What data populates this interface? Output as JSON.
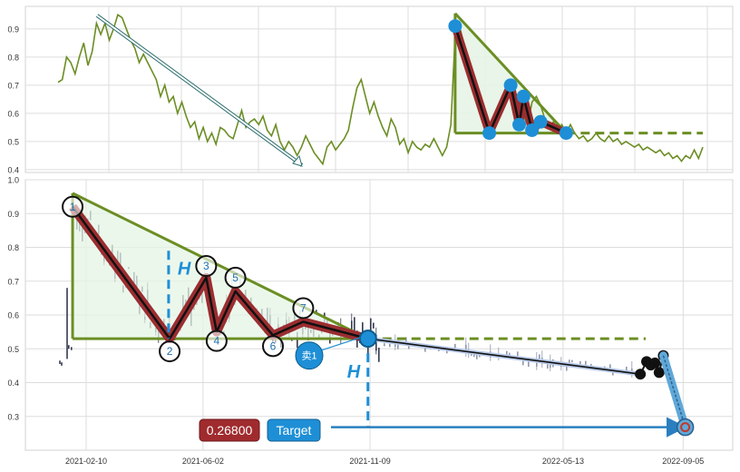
{
  "chart_data": [
    {
      "type": "line",
      "title": "",
      "xlabel": "",
      "ylabel": "",
      "ylim": [
        0.39,
        0.98
      ],
      "grid": true,
      "y_ticks": [
        "0.4",
        "0.5",
        "0.6",
        "0.7",
        "0.8",
        "0.9"
      ],
      "series": [
        {
          "values": [
            0.71,
            0.72,
            0.8,
            0.78,
            0.74,
            0.8,
            0.85,
            0.77,
            0.82,
            0.92,
            0.88,
            0.92,
            0.86,
            0.9,
            0.95,
            0.94,
            0.9,
            0.86,
            0.83,
            0.78,
            0.81,
            0.78,
            0.75,
            0.72,
            0.66,
            0.7,
            0.64,
            0.66,
            0.6,
            0.64,
            0.59,
            0.55,
            0.57,
            0.51,
            0.55,
            0.5,
            0.53,
            0.49,
            0.55,
            0.54,
            0.52,
            0.51,
            0.56,
            0.61,
            0.55,
            0.57,
            0.58,
            0.56,
            0.59,
            0.54,
            0.52,
            0.56,
            0.5,
            0.47,
            0.5,
            0.48,
            0.45,
            0.48,
            0.52,
            0.49,
            0.46,
            0.44,
            0.42,
            0.48,
            0.5,
            0.47,
            0.49,
            0.51,
            0.54,
            0.62,
            0.69,
            0.72,
            0.66,
            0.6,
            0.64,
            0.59,
            0.55,
            0.52,
            0.58,
            0.55,
            0.49,
            0.51,
            0.46,
            0.5,
            0.48,
            0.47,
            0.49,
            0.48,
            0.51,
            0.48,
            0.45,
            0.48,
            0.56,
            0.88,
            0.91,
            0.85,
            0.8,
            0.72,
            0.66,
            0.6,
            0.56,
            0.53,
            0.55,
            0.58,
            0.62,
            0.69,
            0.7,
            0.68,
            0.64,
            0.59,
            0.56,
            0.64,
            0.66,
            0.63,
            0.58,
            0.55,
            0.57,
            0.54,
            0.56,
            0.53,
            0.56,
            0.53,
            0.51,
            0.52,
            0.5,
            0.51,
            0.53,
            0.51,
            0.5,
            0.52,
            0.5,
            0.51,
            0.49,
            0.5,
            0.49,
            0.48,
            0.49,
            0.47,
            0.48,
            0.47,
            0.46,
            0.47,
            0.45,
            0.46,
            0.44,
            0.45,
            0.43,
            0.45,
            0.44,
            0.47,
            0.44,
            0.48
          ]
        }
      ],
      "pattern_vertices": [
        {
          "i": 93,
          "y": 0.91
        },
        {
          "i": 101,
          "y": 0.53
        },
        {
          "i": 106,
          "y": 0.7
        },
        {
          "i": 108,
          "y": 0.56
        },
        {
          "i": 109,
          "y": 0.66
        },
        {
          "i": 111,
          "y": 0.54
        },
        {
          "i": 113,
          "y": 0.57
        },
        {
          "i": 119,
          "y": 0.53
        }
      ],
      "triangle": {
        "top": 0.955,
        "base": 0.53
      },
      "colors": {
        "line": "#6b8e23",
        "pattern": "#9b2d30",
        "marker": "#1e8fd6",
        "fill": "#e6f4e6"
      }
    },
    {
      "type": "candlestick",
      "title": "",
      "xlabel": "",
      "ylabel": "",
      "ylim": [
        0.2,
        1.0
      ],
      "grid": true,
      "x_ticks": [
        "2021-02-10",
        "2021-06-02",
        "2021-11-09",
        "2022-05-13",
        "2022-09-05"
      ],
      "y_ticks": [
        "0.3",
        "0.4",
        "0.5",
        "0.6",
        "0.7",
        "0.8",
        "0.9",
        "1.0"
      ],
      "pattern_points": [
        {
          "label": "1",
          "date": "2021-01-28",
          "y": 0.92
        },
        {
          "label": "2",
          "date": "2021-05-01",
          "y": 0.53
        },
        {
          "label": "3",
          "date": "2021-06-05",
          "y": 0.71
        },
        {
          "label": "4",
          "date": "2021-06-15",
          "y": 0.55
        },
        {
          "label": "5",
          "date": "2021-07-03",
          "y": 0.67
        },
        {
          "label": "6",
          "date": "2021-08-08",
          "y": 0.54
        },
        {
          "label": "7",
          "date": "2021-09-06",
          "y": 0.58
        },
        {
          "label": "",
          "date": "2021-11-07",
          "y": 0.53
        }
      ],
      "triangle": {
        "apex_date": "2021-01-28",
        "top": 0.96,
        "base": 0.53,
        "end_date": "2021-11-07"
      },
      "height_marker": {
        "label": "H",
        "date": "2021-04-30",
        "from": 0.53,
        "to": 0.79
      },
      "height_marker_2": {
        "label": "H",
        "date": "2021-11-07",
        "from": 0.53,
        "to": 0.27
      },
      "breakdown_annotation": "卖1",
      "target_value_label": "0.26800",
      "target_label": "Target",
      "target_value": 0.268,
      "forecast_path": [
        {
          "date": "2021-11-07",
          "y": 0.53
        },
        {
          "date": "2022-07-26",
          "y": 0.425
        }
      ],
      "actual_points": [
        {
          "date": "2022-07-26",
          "y": 0.425
        },
        {
          "date": "2022-08-01",
          "y": 0.462
        },
        {
          "date": "2022-08-05",
          "y": 0.452
        },
        {
          "date": "2022-08-09",
          "y": 0.458
        },
        {
          "date": "2022-08-13",
          "y": 0.43
        },
        {
          "date": "2022-08-17",
          "y": 0.48
        }
      ],
      "projection_to_target": [
        {
          "date": "2022-08-17",
          "y": 0.48
        },
        {
          "date": "2022-09-07",
          "y": 0.268
        }
      ],
      "colors": {
        "pattern": "#9b2d30",
        "line": "#6b8e23",
        "accent": "#1e8fd6",
        "target_label_bg": "#1e8fd6",
        "value_label_bg": "#a02b2e",
        "candle": "#333a4f"
      }
    }
  ]
}
